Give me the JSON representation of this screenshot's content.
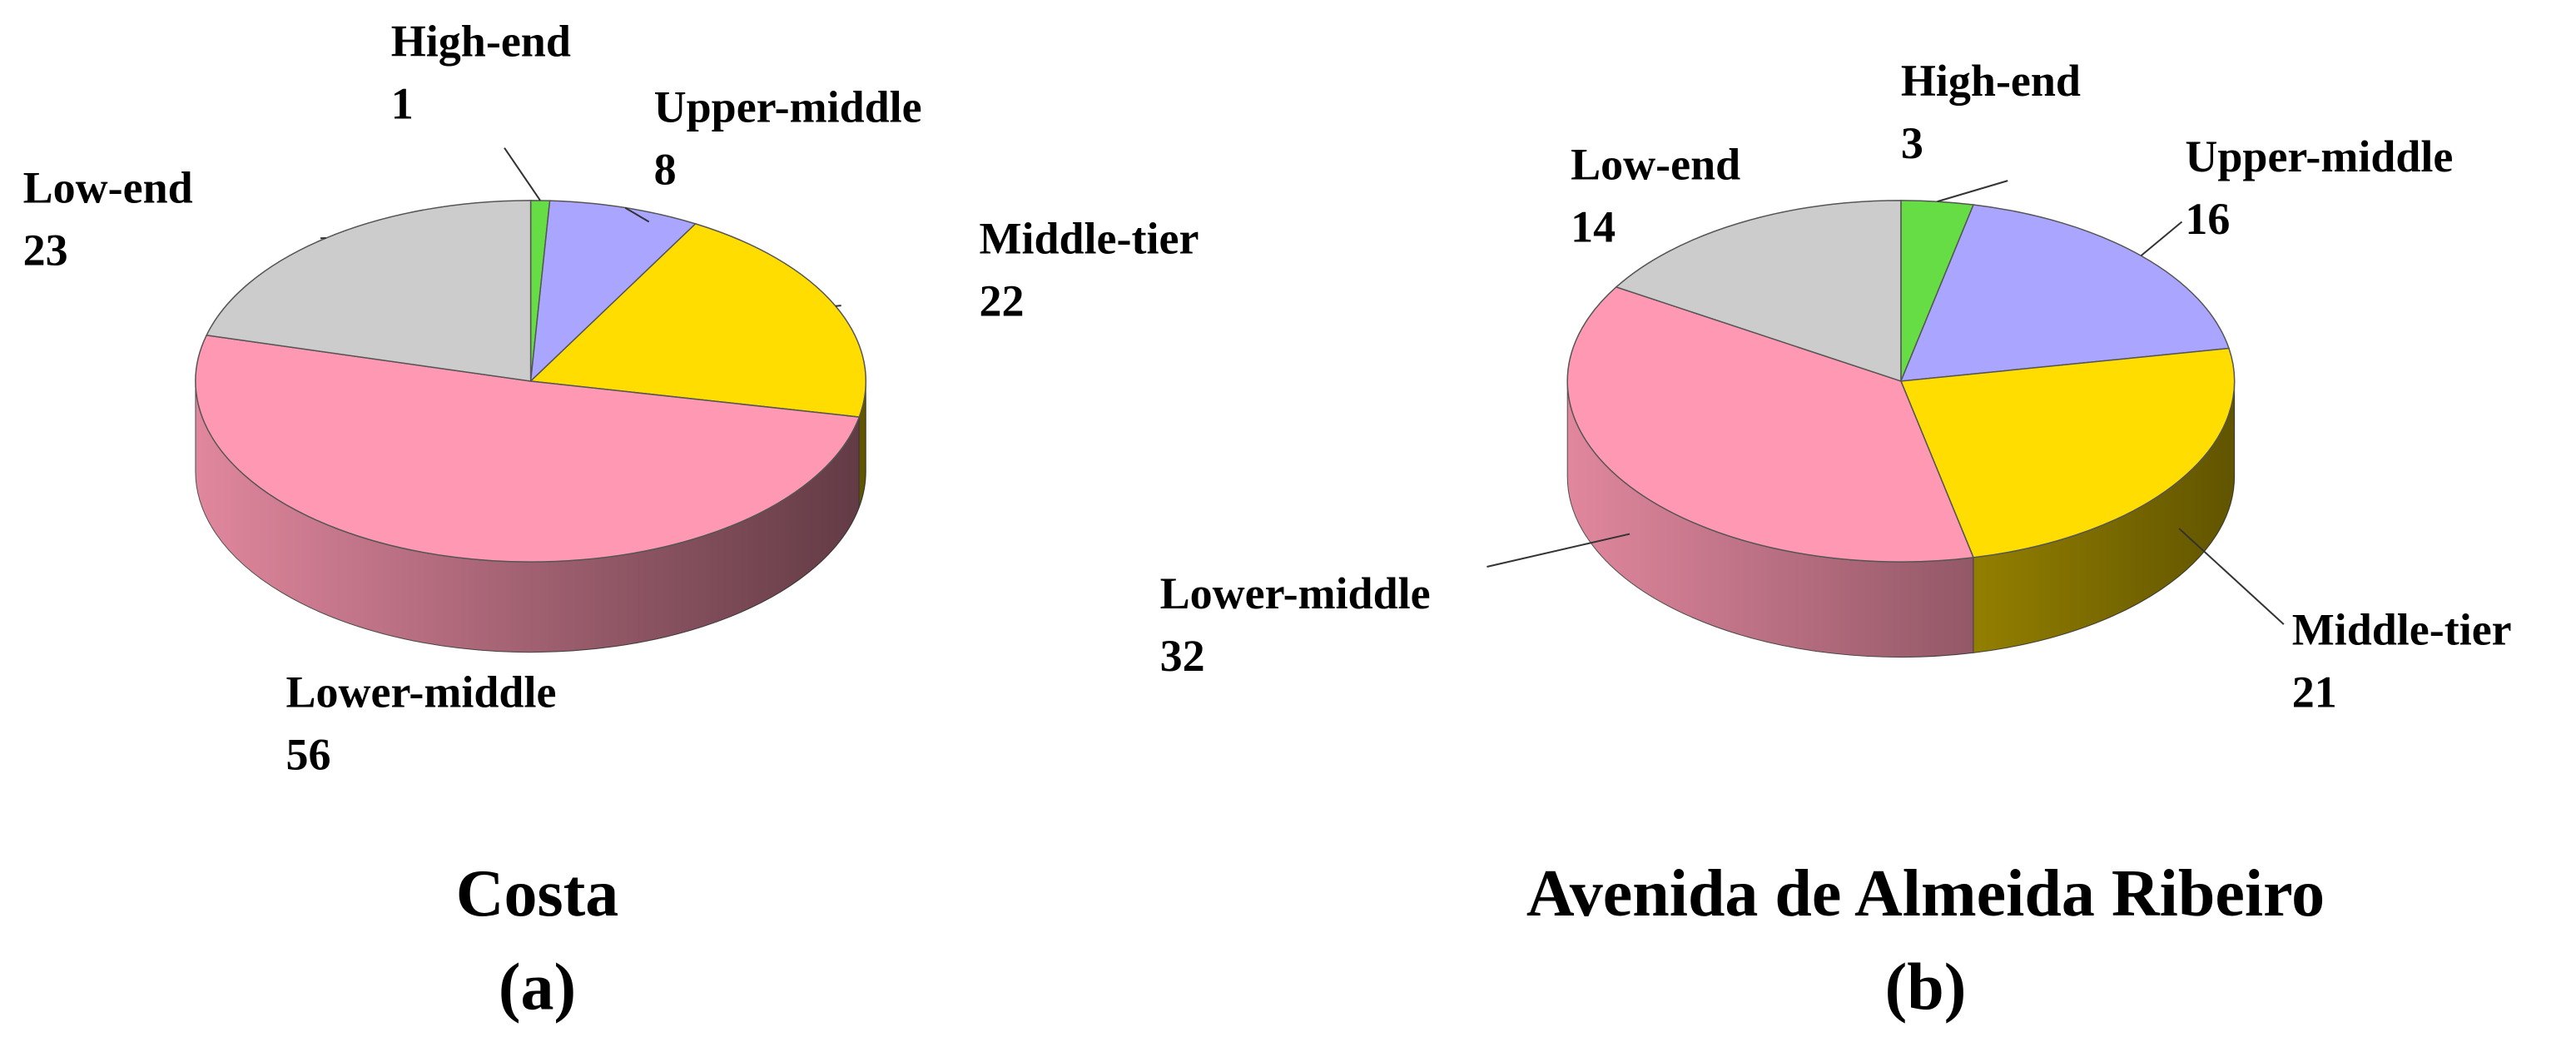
{
  "chart_data": [
    {
      "type": "pie",
      "title": "Costa",
      "subtitle": "(a)",
      "categories": [
        "High-end",
        "Upper-middle",
        "Middle-tier",
        "Lower-middle",
        "Low-end"
      ],
      "values": [
        1,
        8,
        22,
        56,
        23
      ],
      "colors": [
        "#66dd44",
        "#aaa6ff",
        "#ffdd00",
        "#ff99b3",
        "#cccccc"
      ]
    },
    {
      "type": "pie",
      "title": "Avenida de Almeida Ribeiro",
      "subtitle": "(b)",
      "categories": [
        "High-end",
        "Upper-middle",
        "Middle-tier",
        "Lower-middle",
        "Low-end"
      ],
      "values": [
        3,
        16,
        21,
        32,
        14
      ],
      "colors": [
        "#66dd44",
        "#aaa6ff",
        "#ffdd00",
        "#ff99b3",
        "#cccccc"
      ]
    }
  ]
}
